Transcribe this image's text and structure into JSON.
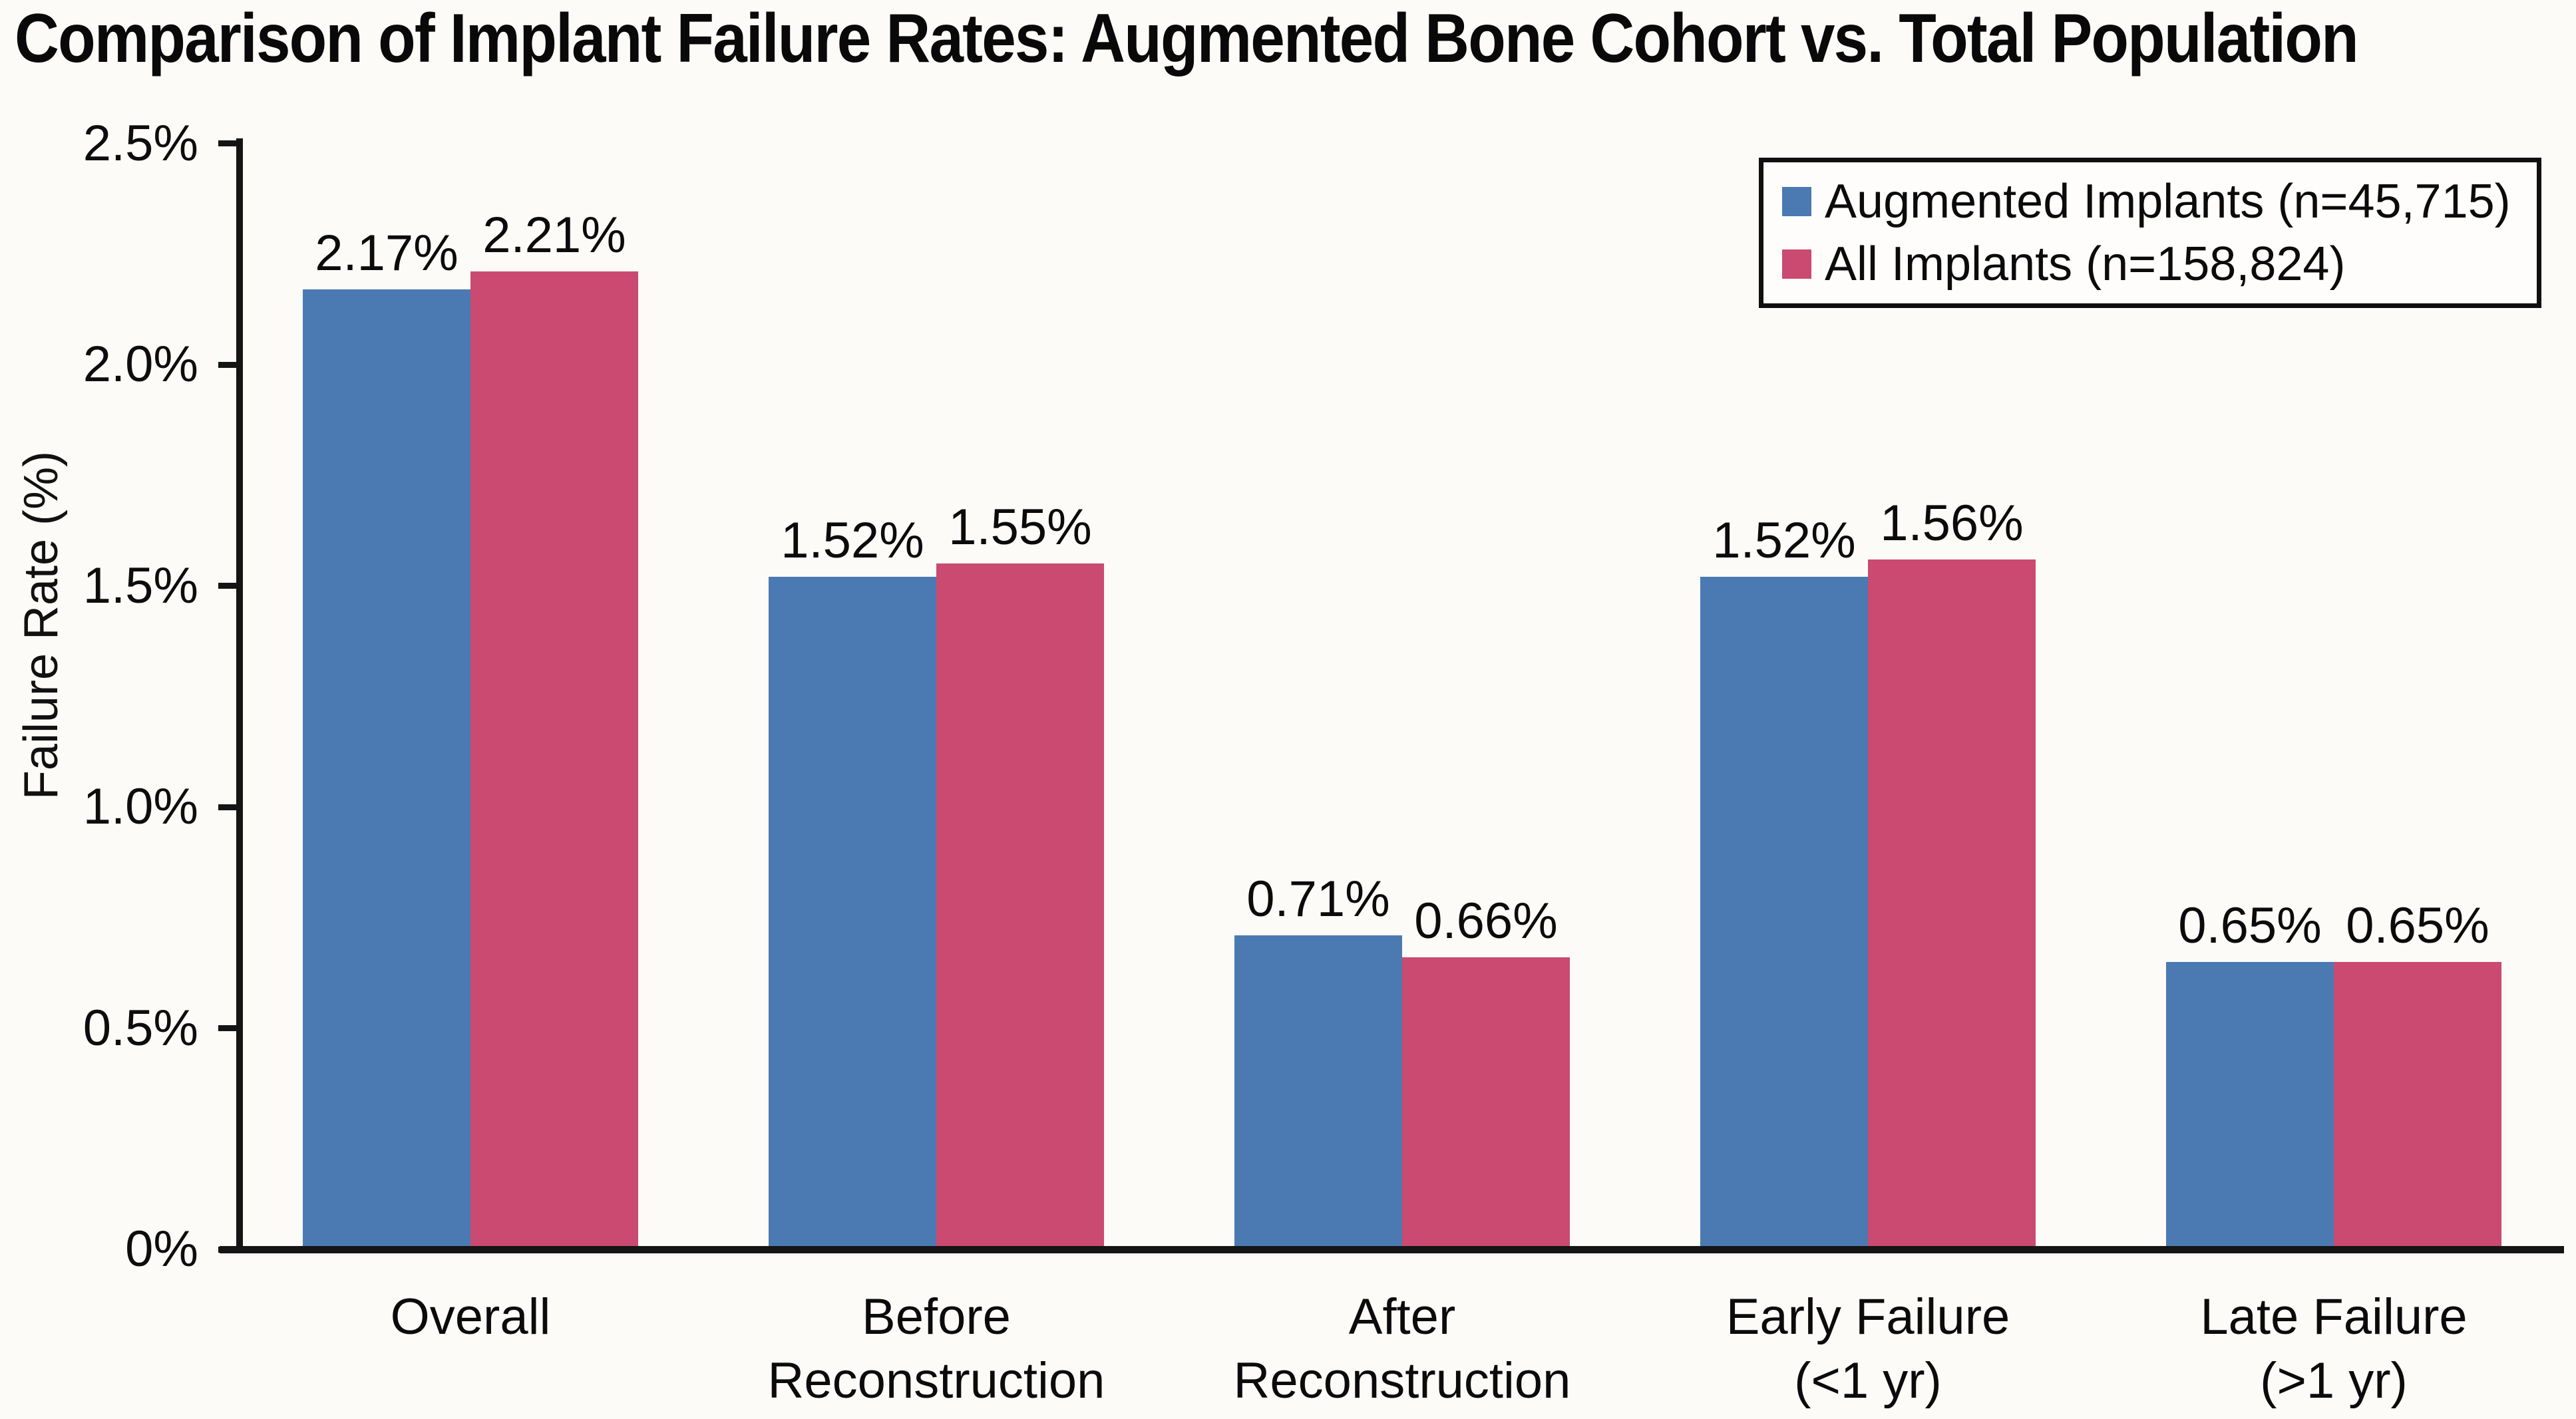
{
  "colors": {
    "augmented_blue": "#4A7AB1",
    "all_implants_red": "#CA4A71",
    "axis_black": "#141414",
    "text_black": "#0D0D0D",
    "background_paper": "#FCFBF8"
  },
  "chart_data": {
    "type": "bar",
    "title": "Comparison of Implant Failure Rates: Augmented Bone Cohort vs. Total Population",
    "xlabel": "",
    "ylabel": "Failure Rate (%)",
    "ylim": [
      0,
      2.5
    ],
    "grid": false,
    "legend_position": "upper-right",
    "yticks": [
      {
        "value": 0,
        "label": "0%"
      },
      {
        "value": 0.5,
        "label": "0.5%"
      },
      {
        "value": 1.0,
        "label": "1.0%"
      },
      {
        "value": 1.5,
        "label": "1.5%"
      },
      {
        "value": 2.0,
        "label": "2.0%"
      },
      {
        "value": 2.5,
        "label": "2.5%"
      }
    ],
    "categories": [
      "Overall",
      "Before Reconstruction",
      "After Reconstruction",
      "Early Failure (<1 yr)",
      "Late Failure (>1 yr)"
    ],
    "category_display": [
      "Overall",
      "Before\nReconstruction",
      "After\nReconstruction",
      "Early Failure\n(<1 yr)",
      "Late Failure\n(>1 yr)"
    ],
    "series": [
      {
        "key": "augmented",
        "name": "Augmented Implants (n=45,715)",
        "color": "#4A7AB1",
        "values": [
          2.17,
          1.52,
          0.71,
          1.52,
          0.65
        ],
        "value_labels": [
          "2.17%",
          "1.52%",
          "0.71%",
          "1.52%",
          "0.65%"
        ]
      },
      {
        "key": "all",
        "name": "All Implants (n=158,824)",
        "color": "#CA4A71",
        "values": [
          2.21,
          1.55,
          0.66,
          1.56,
          0.65
        ],
        "value_labels": [
          "2.21%",
          "1.55%",
          "0.66%",
          "1.56%",
          "0.65%"
        ]
      }
    ]
  }
}
